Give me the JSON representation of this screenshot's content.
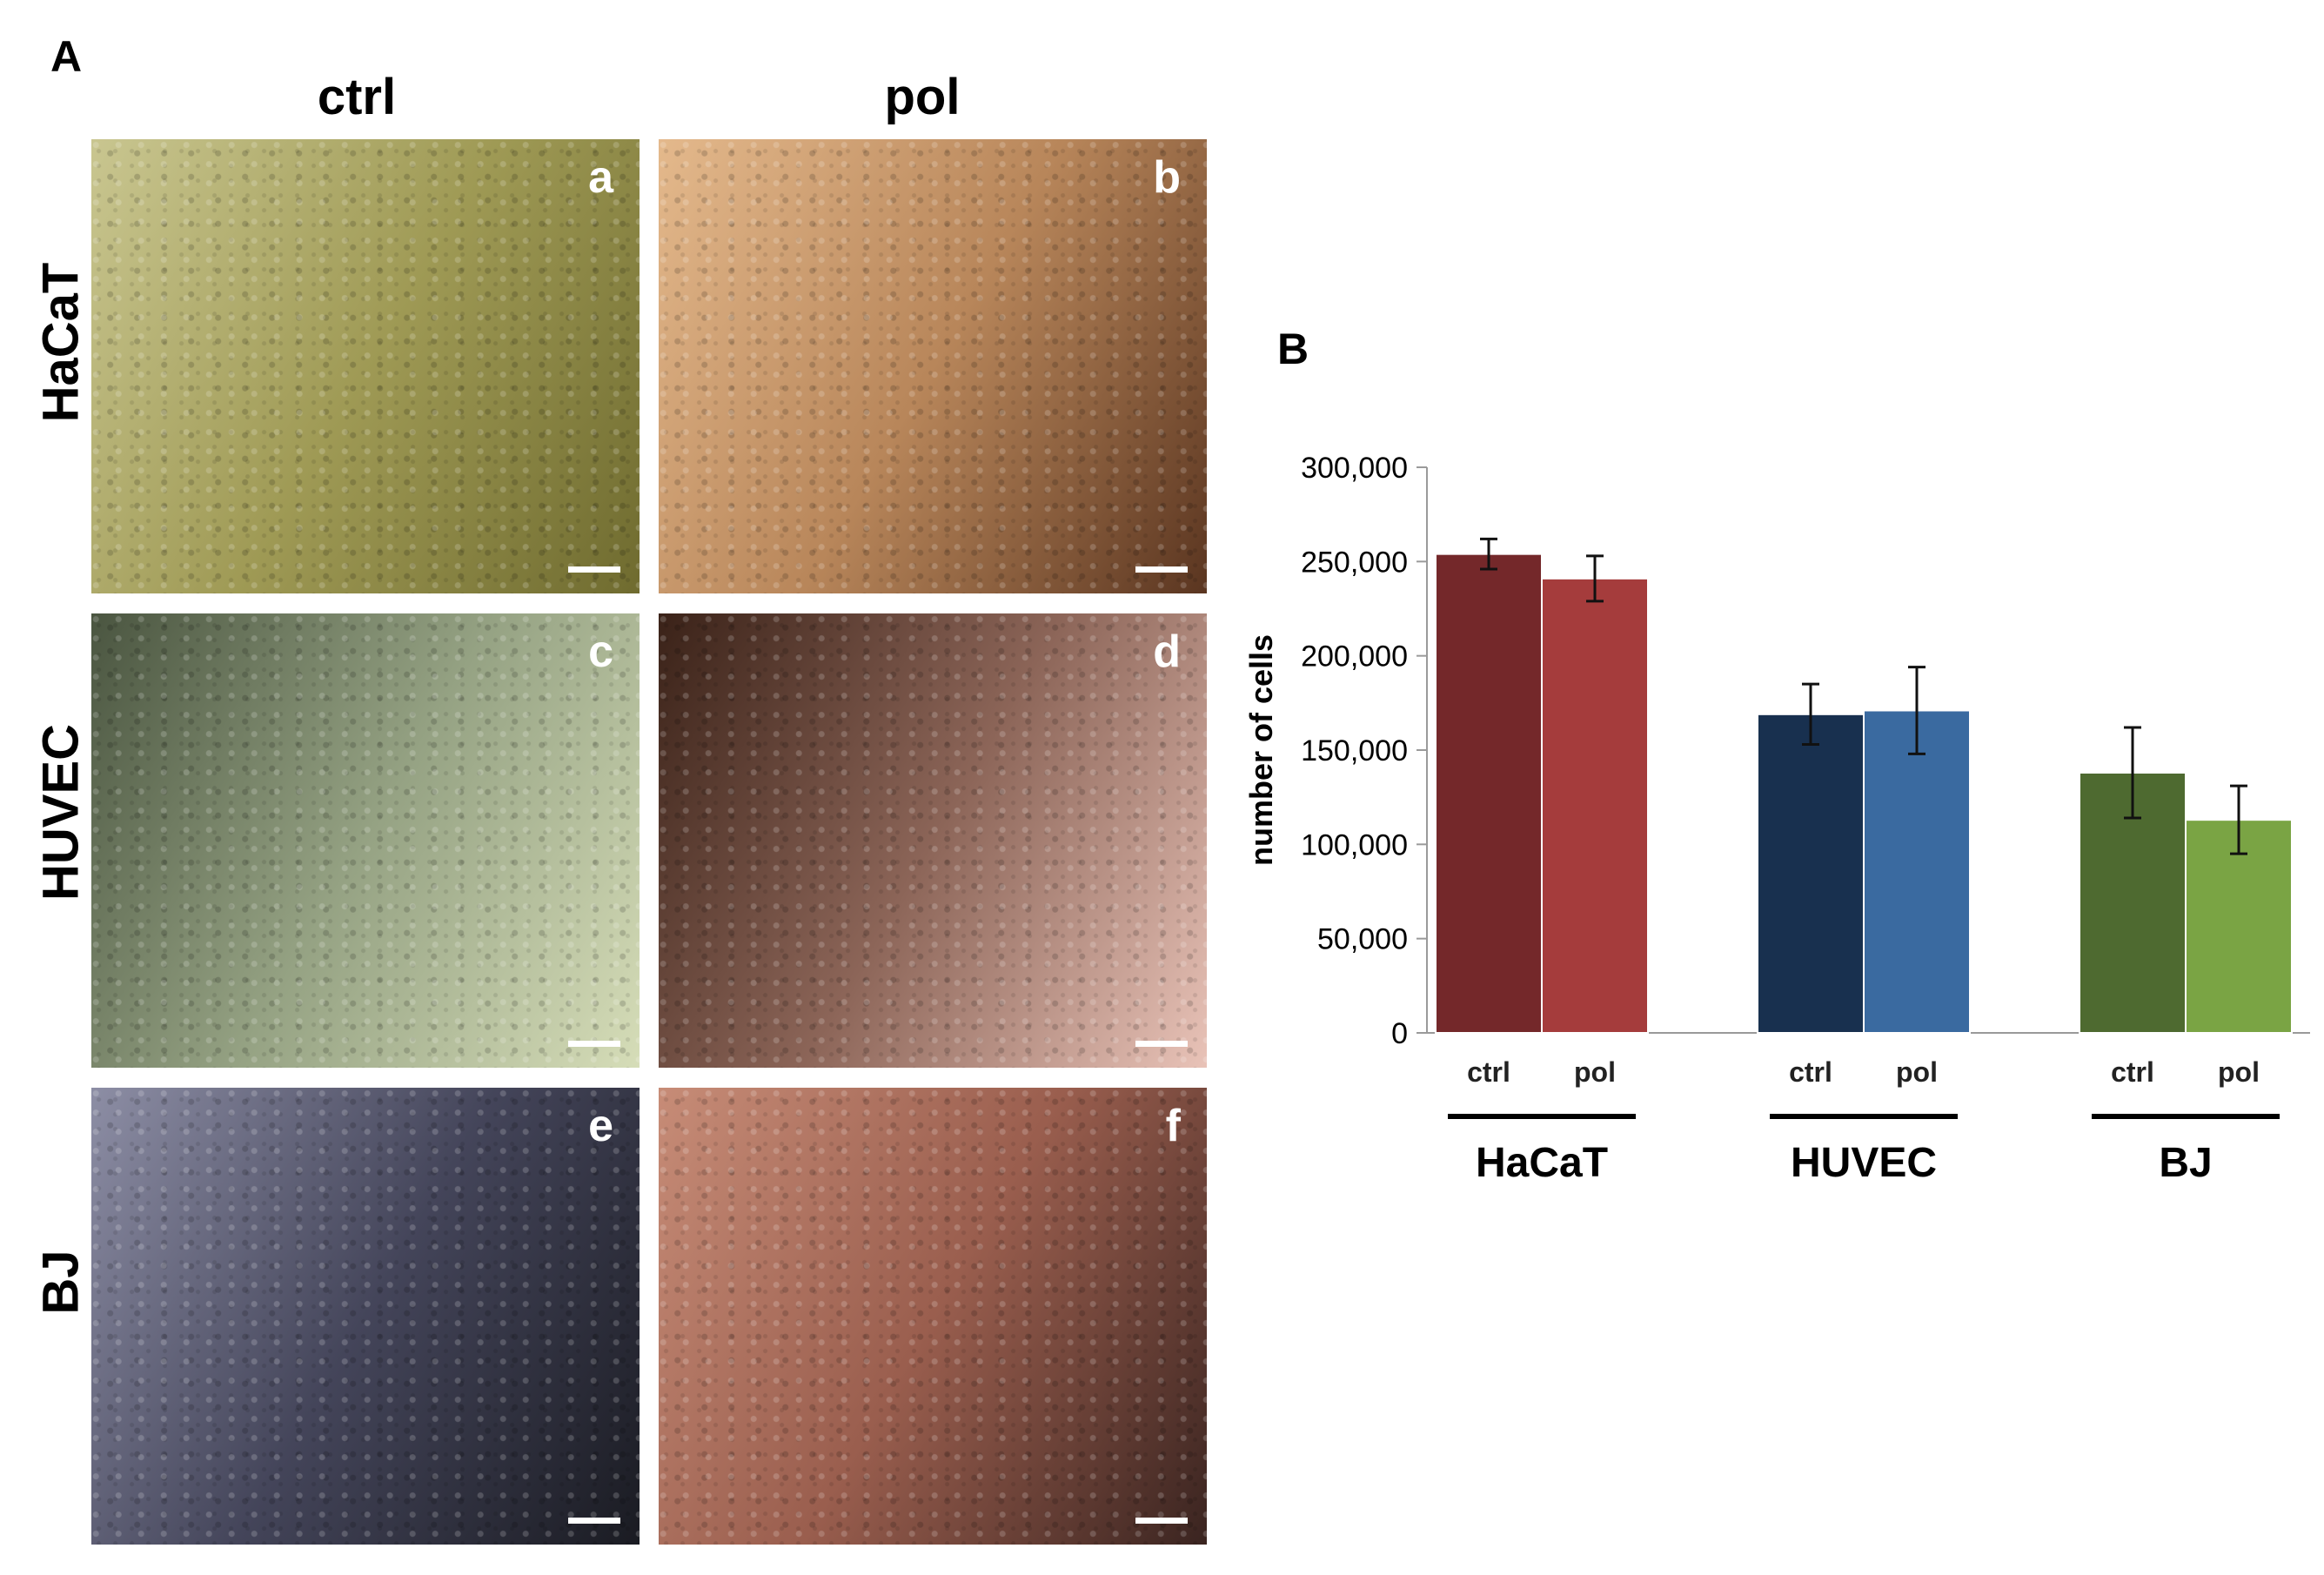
{
  "panel_a": {
    "letter": "A",
    "columns": [
      "ctrl",
      "pol"
    ],
    "rows": [
      "HaCaT",
      "HUVEC",
      "BJ"
    ],
    "images": [
      {
        "letter": "a",
        "colors": [
          "#c9c690",
          "#9f9a55",
          "#6f6b2f"
        ]
      },
      {
        "letter": "b",
        "colors": [
          "#e4b98c",
          "#b8865a",
          "#5a3520"
        ]
      },
      {
        "letter": "c",
        "colors": [
          "#4a5540",
          "#95a283",
          "#d6ddb8"
        ]
      },
      {
        "letter": "d",
        "colors": [
          "#3a2218",
          "#8c6558",
          "#e9c3b8"
        ]
      },
      {
        "letter": "e",
        "colors": [
          "#8d8ea5",
          "#44455a",
          "#1a1b22"
        ]
      },
      {
        "letter": "f",
        "colors": [
          "#c78c77",
          "#9a5e4e",
          "#3a2420"
        ]
      }
    ]
  },
  "panel_b": {
    "letter": "B"
  },
  "chart_data": {
    "type": "bar",
    "ylabel": "number of cells",
    "ylim": [
      0,
      300000
    ],
    "yticks": [
      "0",
      "50,000",
      "100,000",
      "150,000",
      "200,000",
      "250,000",
      "300,000"
    ],
    "groups": [
      "HaCaT",
      "HUVEC",
      "BJ"
    ],
    "bar_labels": [
      "ctrl",
      "pol"
    ],
    "bars": [
      {
        "group": "HaCaT",
        "label": "ctrl",
        "value": 254000,
        "error": 8000,
        "color": "#74282a"
      },
      {
        "group": "HaCaT",
        "label": "pol",
        "value": 241000,
        "error": 12000,
        "color": "#a53c3c"
      },
      {
        "group": "HUVEC",
        "label": "ctrl",
        "value": 169000,
        "error": 16000,
        "color": "#18304f"
      },
      {
        "group": "HUVEC",
        "label": "pol",
        "value": 171000,
        "error": 23000,
        "color": "#3a6aa0"
      },
      {
        "group": "BJ",
        "label": "ctrl",
        "value": 138000,
        "error": 24000,
        "color": "#4e6a30"
      },
      {
        "group": "BJ",
        "label": "pol",
        "value": 113000,
        "error": 18000,
        "color": "#7aa444"
      }
    ]
  }
}
